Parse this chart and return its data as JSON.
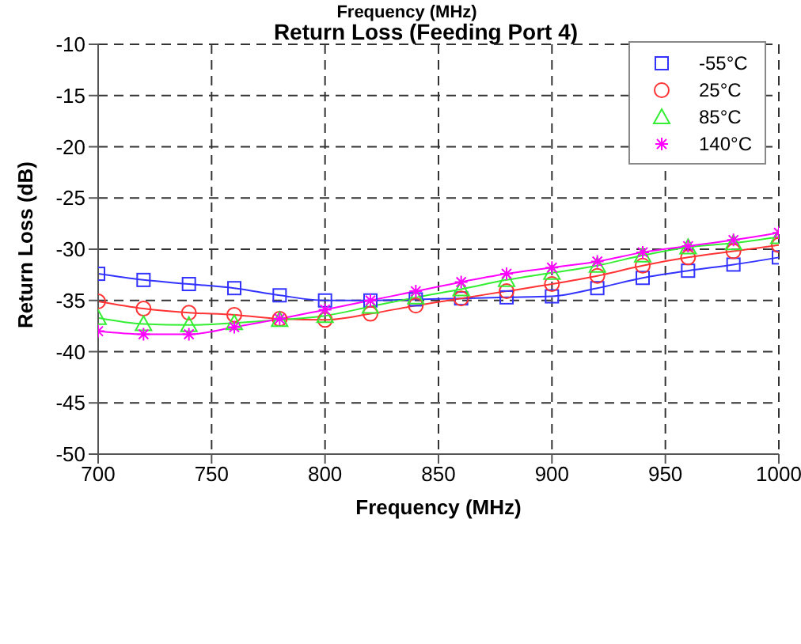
{
  "chart_data": {
    "type": "line",
    "title": "Return Loss (Feeding Port 4)",
    "annotations": [
      "Frequency (MHz)"
    ],
    "xlabel": "Frequency (MHz)",
    "ylabel": "Return Loss (dB)",
    "x": [
      700,
      720,
      740,
      760,
      780,
      800,
      820,
      840,
      860,
      880,
      900,
      920,
      940,
      960,
      980,
      1000
    ],
    "series": [
      {
        "name": "-55°C",
        "color": "#3333ff",
        "marker": "square",
        "values": [
          -32.4,
          -33.0,
          -33.4,
          -33.8,
          -34.5,
          -35.0,
          -35.0,
          -34.9,
          -34.8,
          -34.7,
          -34.6,
          -33.8,
          -32.8,
          -32.1,
          -31.5,
          -30.8
        ]
      },
      {
        "name": "25°C",
        "color": "#ff3333",
        "marker": "circle",
        "values": [
          -35.1,
          -35.8,
          -36.2,
          -36.4,
          -36.8,
          -36.9,
          -36.3,
          -35.5,
          -34.8,
          -34.1,
          -33.4,
          -32.6,
          -31.6,
          -30.8,
          -30.2,
          -29.6
        ]
      },
      {
        "name": "85°C",
        "color": "#33ee33",
        "marker": "triangle",
        "values": [
          -36.7,
          -37.3,
          -37.4,
          -37.2,
          -36.9,
          -36.5,
          -35.6,
          -34.7,
          -33.9,
          -33.0,
          -32.3,
          -31.6,
          -30.6,
          -29.8,
          -29.4,
          -28.8
        ]
      },
      {
        "name": "140°C",
        "color": "#ff00ff",
        "marker": "cross",
        "values": [
          -38.0,
          -38.3,
          -38.3,
          -37.6,
          -36.8,
          -35.9,
          -35.0,
          -34.1,
          -33.2,
          -32.4,
          -31.8,
          -31.2,
          -30.3,
          -29.7,
          -29.1,
          -28.4
        ]
      }
    ],
    "xlim": [
      700,
      1000
    ],
    "xticks": [
      700,
      750,
      800,
      850,
      900,
      950,
      1000
    ],
    "ylim": [
      -50,
      -10
    ],
    "yticks": [
      -50,
      -45,
      -40,
      -35,
      -30,
      -25,
      -20,
      -15,
      -10
    ],
    "grid": true,
    "legend": "top right",
    "line_style": "solid"
  }
}
